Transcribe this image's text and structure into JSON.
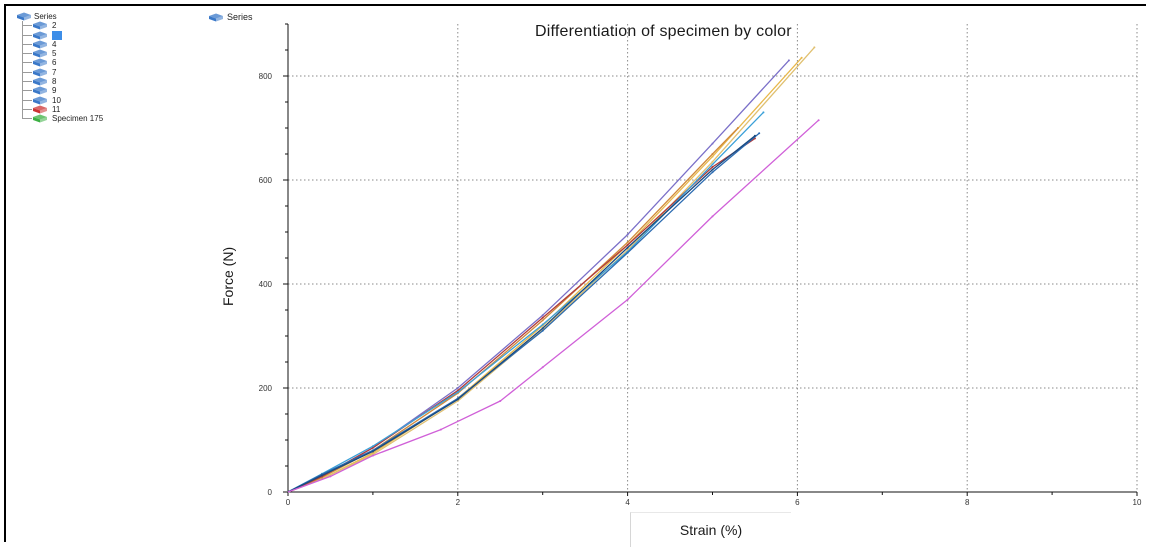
{
  "tree": {
    "root_label": "Series",
    "items": [
      {
        "label": "2",
        "icon": "blue-cube-icon",
        "selected": false
      },
      {
        "label": "3",
        "icon": "blue-cube-icon",
        "selected": true
      },
      {
        "label": "4",
        "icon": "blue-cube-icon",
        "selected": false
      },
      {
        "label": "5",
        "icon": "blue-cube-icon",
        "selected": false
      },
      {
        "label": "6",
        "icon": "blue-cube-icon",
        "selected": false
      },
      {
        "label": "7",
        "icon": "blue-cube-icon",
        "selected": false
      },
      {
        "label": "8",
        "icon": "blue-cube-icon",
        "selected": false
      },
      {
        "label": "9",
        "icon": "blue-cube-icon",
        "selected": false
      },
      {
        "label": "10",
        "icon": "blue-cube-icon",
        "selected": false
      },
      {
        "label": "11",
        "icon": "red-cube-icon",
        "selected": false
      },
      {
        "label": "Specimen 175",
        "icon": "green-cube-icon",
        "selected": false
      }
    ]
  },
  "chart_legend": {
    "label": "Series",
    "icon": "blue-cube-icon"
  },
  "colors": {
    "blue_cube": "#3a78c8",
    "red_cube": "#cc3333",
    "green_cube": "#3cb043",
    "selection": "#3d8ee8",
    "grid": "#8a8a8a"
  },
  "chart_data": {
    "type": "line",
    "title": "Differentiation of specimen by color",
    "xlabel": "Strain (%)",
    "ylabel": "Force (N)",
    "xlim": [
      0,
      10
    ],
    "ylim": [
      0,
      900
    ],
    "xticks": [
      0,
      2,
      4,
      6,
      8,
      10
    ],
    "yticks": [
      0,
      200,
      400,
      600,
      800
    ],
    "grid": true,
    "grid_style": "dotted",
    "series": [
      {
        "color": "#7a6fc8",
        "x": [
          0,
          0.4,
          1,
          2,
          3,
          4,
          5,
          5.9
        ],
        "y": [
          0,
          30,
          85,
          200,
          340,
          495,
          670,
          830
        ]
      },
      {
        "color": "#e8b84a",
        "x": [
          0,
          0.4,
          1,
          2,
          3,
          4,
          5,
          6.05
        ],
        "y": [
          0,
          25,
          75,
          180,
          320,
          475,
          645,
          835
        ]
      },
      {
        "color": "#e0c070",
        "x": [
          0,
          0.4,
          1,
          2,
          3,
          4,
          5,
          6.2
        ],
        "y": [
          0,
          25,
          72,
          175,
          312,
          465,
          635,
          855
        ]
      },
      {
        "color": "#d08a3a",
        "x": [
          0,
          0.4,
          1,
          2,
          3,
          4,
          5,
          5.3
        ],
        "y": [
          0,
          28,
          80,
          190,
          330,
          480,
          650,
          700
        ]
      },
      {
        "color": "#b03a3a",
        "x": [
          0,
          0.4,
          1,
          2,
          3,
          4,
          5,
          5.5
        ],
        "y": [
          0,
          30,
          85,
          195,
          335,
          475,
          625,
          680
        ]
      },
      {
        "color": "#3aa0d8",
        "x": [
          0,
          0.4,
          1,
          2,
          3,
          4,
          5,
          5.6
        ],
        "y": [
          0,
          35,
          88,
          192,
          322,
          462,
          630,
          730
        ]
      },
      {
        "color": "#2a6ab0",
        "x": [
          0,
          0.4,
          1,
          2,
          3,
          4,
          5,
          5.55
        ],
        "y": [
          0,
          34,
          80,
          180,
          310,
          460,
          615,
          690
        ]
      },
      {
        "color": "#1a4a80",
        "x": [
          0,
          0.4,
          1,
          2,
          3,
          4,
          5,
          5.5
        ],
        "y": [
          0,
          32,
          78,
          178,
          315,
          470,
          620,
          685
        ]
      },
      {
        "color": "#d060d8",
        "x": [
          0,
          0.5,
          1,
          1.8,
          2.5,
          3,
          4,
          5,
          6.25
        ],
        "y": [
          0,
          30,
          70,
          120,
          175,
          240,
          370,
          530,
          715
        ]
      }
    ]
  }
}
